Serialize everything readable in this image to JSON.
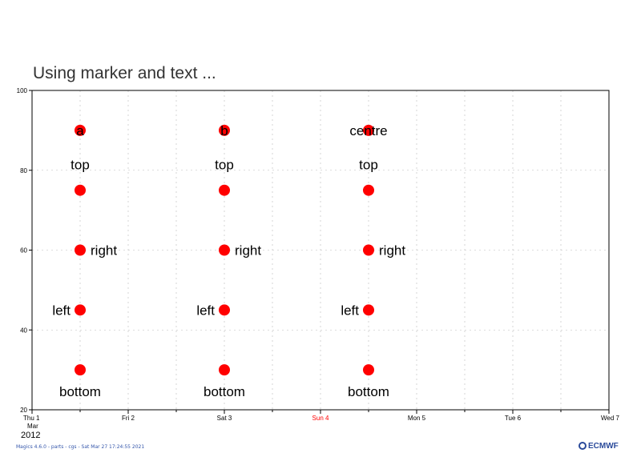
{
  "title": "Using marker and text ...",
  "footer": "Magics 4.6.0 - parts - cgs - Sat Mar 27 17:24:55 2021",
  "logo_text": "ECMWF",
  "colors": {
    "marker": "#ff0000",
    "sunday": "#ff0000",
    "axis": "#000000",
    "grid": "#bbbbbb",
    "frame": "#000000"
  },
  "chart_data": {
    "type": "scatter",
    "title": "Using marker and text ...",
    "xlabel": "",
    "ylabel": "",
    "ylim": [
      20,
      100
    ],
    "xlim": [
      "2012-03-01",
      "2012-03-07"
    ],
    "grid": true,
    "y_ticks": [
      "20",
      "40",
      "60",
      "80",
      "100"
    ],
    "x_ticks": [
      {
        "date": "2012-03-01",
        "label": "Thu 1",
        "sub": "Mar",
        "highlight": false
      },
      {
        "date": "2012-03-02",
        "label": "Fri 2",
        "sub": "",
        "highlight": false
      },
      {
        "date": "2012-03-03",
        "label": "Sat 3",
        "sub": "",
        "highlight": false
      },
      {
        "date": "2012-03-04",
        "label": "Sun 4",
        "sub": "",
        "highlight": true
      },
      {
        "date": "2012-03-05",
        "label": "Mon 5",
        "sub": "",
        "highlight": false
      },
      {
        "date": "2012-03-06",
        "label": "Tue 6",
        "sub": "",
        "highlight": false
      },
      {
        "date": "2012-03-07",
        "label": "Wed 7",
        "sub": "",
        "highlight": false
      }
    ],
    "x_year_label": "2012",
    "points": [
      {
        "x": "2012-03-01 12:00",
        "y": 90,
        "text": "a",
        "position": "centre"
      },
      {
        "x": "2012-03-01 12:00",
        "y": 75,
        "text": "top",
        "position": "top"
      },
      {
        "x": "2012-03-01 12:00",
        "y": 60,
        "text": "right",
        "position": "right"
      },
      {
        "x": "2012-03-01 12:00",
        "y": 45,
        "text": "left",
        "position": "left"
      },
      {
        "x": "2012-03-01 12:00",
        "y": 30,
        "text": "bottom",
        "position": "bottom"
      },
      {
        "x": "2012-03-03 00:00",
        "y": 90,
        "text": "b",
        "position": "centre"
      },
      {
        "x": "2012-03-03 00:00",
        "y": 75,
        "text": "top",
        "position": "top"
      },
      {
        "x": "2012-03-03 00:00",
        "y": 60,
        "text": "right",
        "position": "right"
      },
      {
        "x": "2012-03-03 00:00",
        "y": 45,
        "text": "left",
        "position": "left"
      },
      {
        "x": "2012-03-03 00:00",
        "y": 30,
        "text": "bottom",
        "position": "bottom"
      },
      {
        "x": "2012-03-04 12:00",
        "y": 90,
        "text": "centre",
        "position": "centre"
      },
      {
        "x": "2012-03-04 12:00",
        "y": 75,
        "text": "top",
        "position": "top"
      },
      {
        "x": "2012-03-04 12:00",
        "y": 60,
        "text": "right",
        "position": "right"
      },
      {
        "x": "2012-03-04 12:00",
        "y": 45,
        "text": "left",
        "position": "left"
      },
      {
        "x": "2012-03-04 12:00",
        "y": 30,
        "text": "bottom",
        "position": "bottom"
      }
    ]
  }
}
